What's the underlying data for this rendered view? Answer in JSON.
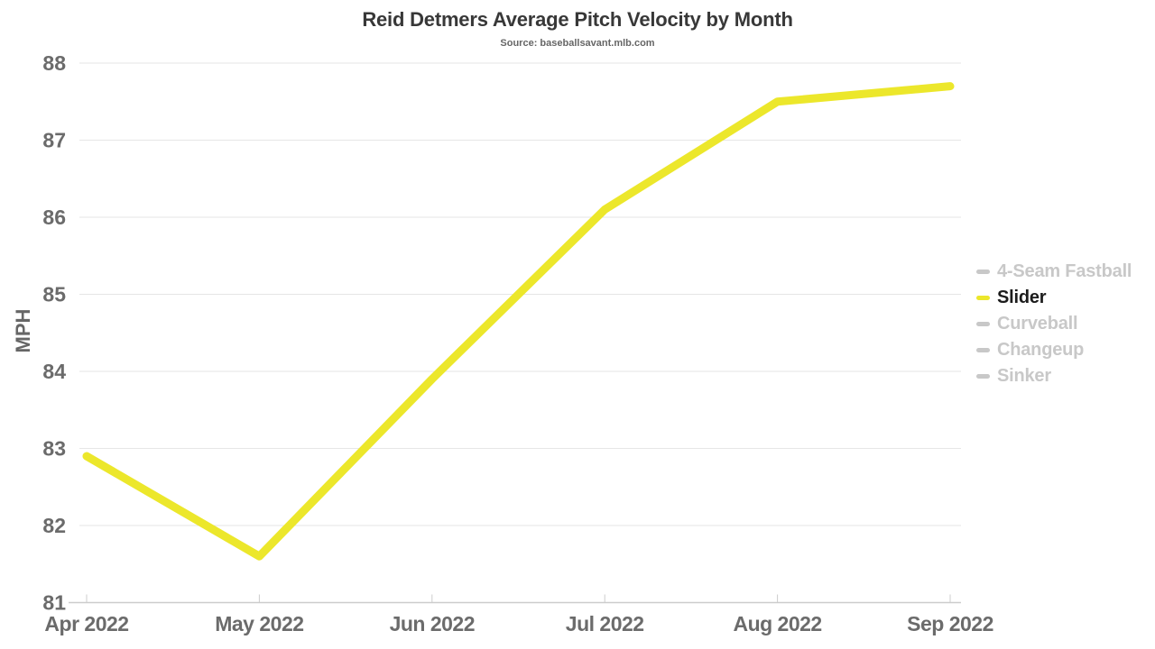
{
  "title": "Reid Detmers Average Pitch Velocity by Month",
  "subtitle": "Source: baseballsavant.mlb.com",
  "colors": {
    "background": "#ffffff",
    "accent_line": "#ece72b",
    "inactive": "#c8c8c8",
    "grid": "#e6e6e6",
    "axis": "#cccccc",
    "tick_label": "#6b6b6b",
    "title": "#383838",
    "subtitle": "#666666",
    "legend_active_text": "#1c1c1c",
    "axis_title": "#666666"
  },
  "chart_data": {
    "type": "line",
    "title": "Reid Detmers Average Pitch Velocity by Month",
    "subtitle": "Source: baseballsavant.mlb.com",
    "xlabel": "",
    "ylabel": "MPH",
    "ylim": [
      81,
      88
    ],
    "yticks": [
      81,
      82,
      83,
      84,
      85,
      86,
      87,
      88
    ],
    "grid": true,
    "legend_position": "right",
    "categories": [
      "Apr 2022",
      "May 2022",
      "Jun 2022",
      "Jul 2022",
      "Aug 2022",
      "Sep 2022"
    ],
    "series": [
      {
        "name": "4-Seam Fastball",
        "active": false,
        "color": "#c8c8c8",
        "values": null
      },
      {
        "name": "Slider",
        "active": true,
        "color": "#ece72b",
        "values": [
          82.9,
          81.6,
          83.9,
          86.1,
          87.5,
          87.7
        ]
      },
      {
        "name": "Curveball",
        "active": false,
        "color": "#c8c8c8",
        "values": null
      },
      {
        "name": "Changeup",
        "active": false,
        "color": "#c8c8c8",
        "values": null
      },
      {
        "name": "Sinker",
        "active": false,
        "color": "#c8c8c8",
        "values": null
      }
    ]
  }
}
